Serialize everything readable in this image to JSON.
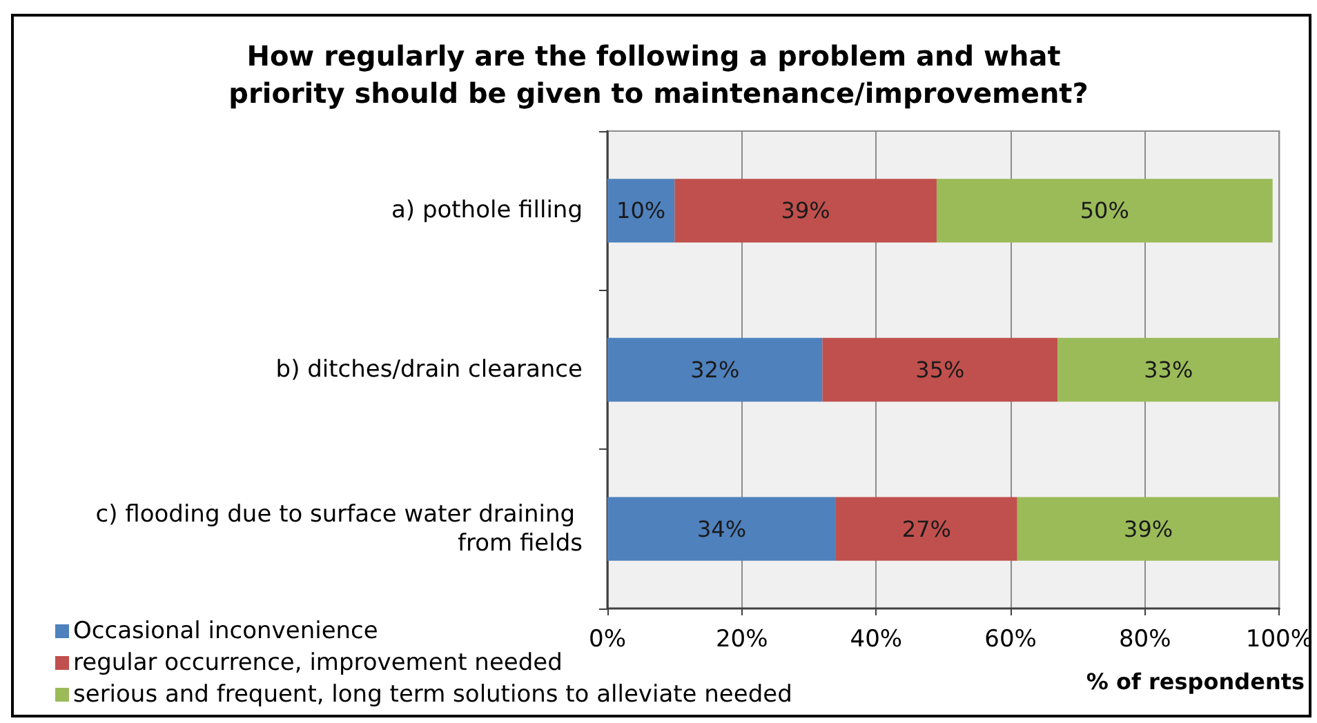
{
  "chart_data": {
    "type": "bar",
    "orientation": "horizontal",
    "stacked": true,
    "title": "How regularly are the following a problem and what priority should be given to maintenance/improvement?",
    "xlabel": "% of respondents",
    "categories": [
      "a) pothole filling",
      "b) ditches/drain clearance",
      "c) flooding due to surface water draining from fields"
    ],
    "series": [
      {
        "name": "Occasional inconvenience",
        "color": "#4f81bd",
        "values": [
          10,
          32,
          34
        ],
        "value_labels": [
          "10%",
          "32%",
          "34%"
        ]
      },
      {
        "name": "regular occurrence, improvement needed",
        "color": "#c0504d",
        "values": [
          39,
          35,
          27
        ],
        "value_labels": [
          "39%",
          "35%",
          "27%"
        ]
      },
      {
        "name": "serious and frequent, long term solutions to alleviate needed",
        "color": "#9bbb59",
        "values": [
          50,
          33,
          39
        ],
        "value_labels": [
          "50%",
          "33%",
          "39%"
        ]
      }
    ],
    "xlim": [
      0,
      100
    ],
    "xticks": [
      {
        "value": 0,
        "label": "0%"
      },
      {
        "value": 20,
        "label": "20%"
      },
      {
        "value": 40,
        "label": "40%"
      },
      {
        "value": 60,
        "label": "60%"
      },
      {
        "value": 80,
        "label": "80%"
      },
      {
        "value": 100,
        "label": "100%"
      }
    ],
    "grid": "x",
    "legend": "bottom left"
  }
}
